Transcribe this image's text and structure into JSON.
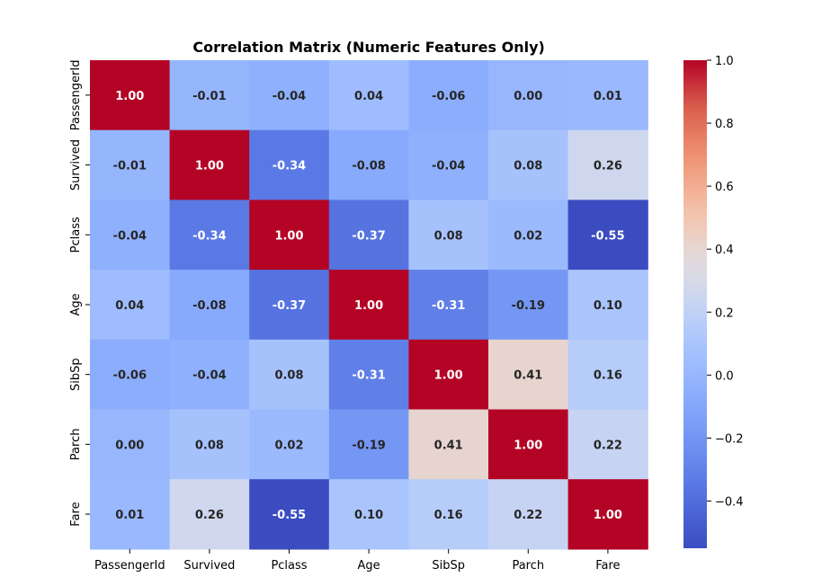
{
  "chart_data": {
    "type": "heatmap",
    "title": "Correlation Matrix (Numeric Features Only)",
    "xlabel": "",
    "ylabel": "",
    "rows": [
      "PassengerId",
      "Survived",
      "Pclass",
      "Age",
      "SibSp",
      "Parch",
      "Fare"
    ],
    "columns": [
      "PassengerId",
      "Survived",
      "Pclass",
      "Age",
      "SibSp",
      "Parch",
      "Fare"
    ],
    "values": [
      [
        1.0,
        -0.01,
        -0.04,
        0.04,
        -0.06,
        -0.0,
        0.01
      ],
      [
        -0.01,
        1.0,
        -0.34,
        -0.08,
        -0.04,
        0.08,
        0.26
      ],
      [
        -0.04,
        -0.34,
        1.0,
        -0.37,
        0.08,
        0.02,
        -0.55
      ],
      [
        0.04,
        -0.08,
        -0.37,
        1.0,
        -0.31,
        -0.19,
        0.1
      ],
      [
        -0.06,
        -0.04,
        0.08,
        -0.31,
        1.0,
        0.41,
        0.16
      ],
      [
        -0.0,
        0.08,
        0.02,
        -0.19,
        0.41,
        1.0,
        0.22
      ],
      [
        0.01,
        0.26,
        -0.55,
        0.1,
        0.16,
        0.22,
        1.0
      ]
    ],
    "value_format": "0.00",
    "colormap": "coolwarm",
    "color_range": [
      -0.55,
      1.0
    ],
    "colorbar": {
      "ticks": [
        -0.4,
        -0.2,
        0.0,
        0.2,
        0.4,
        0.6,
        0.8,
        1.0
      ],
      "tick_labels": [
        "−0.4",
        "−0.2",
        "0.0",
        "0.2",
        "0.4",
        "0.6",
        "0.8",
        "1.0"
      ],
      "placement": "right"
    },
    "grid": false
  }
}
